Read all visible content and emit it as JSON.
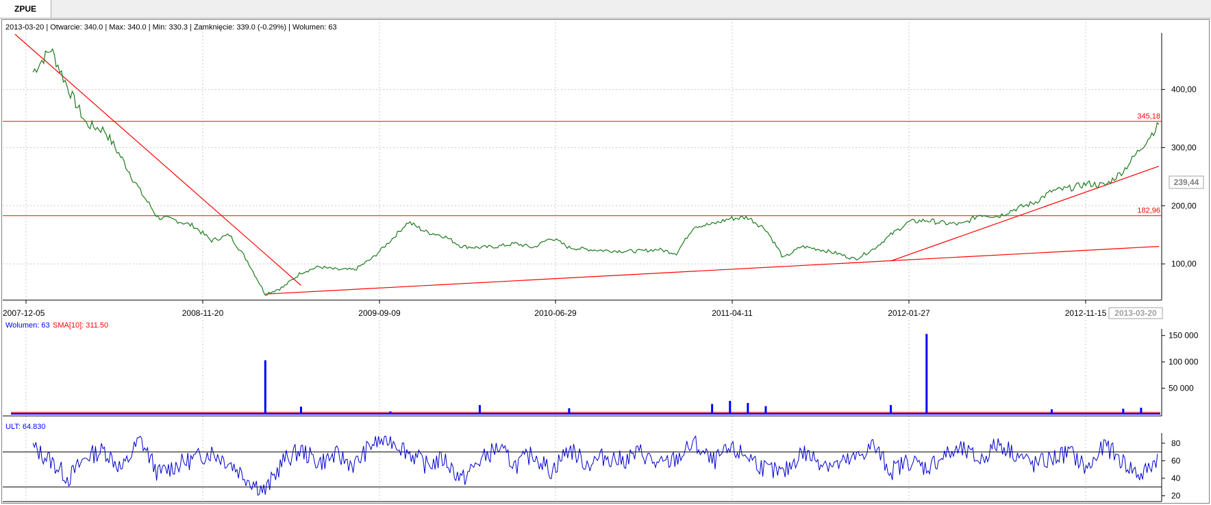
{
  "tab": {
    "label": "ZPUE"
  },
  "info_line": "2013-03-20 | Otwarcie: 340.0 | Max: 340.0 | Min: 330.3 | Zamknięcie: 339.0 (-0.29%)  | Wolumen: 63",
  "colors": {
    "price": "#000000",
    "price_ma": "#1a7a1a",
    "lines": "#ff0000",
    "volume": "#0000ff",
    "volume_sma": "#ff0000",
    "ult": "#0000cc",
    "grid": "#c8c8c8"
  },
  "chart_data": [
    {
      "type": "line",
      "name": "price",
      "x_ticks": [
        "2007-12-05",
        "2008-11-20",
        "2009-09-09",
        "2010-06-29",
        "2011-04-11",
        "2012-01-27",
        "2012-11-15"
      ],
      "x_current": "2013-03-20",
      "y_ticks": [
        "100,00",
        "200,00",
        "300,00",
        "400,00"
      ],
      "ylim": [
        40,
        495
      ],
      "last_value_label": "239,44",
      "x": [
        "2007-12",
        "2008-01",
        "2008-02",
        "2008-03",
        "2008-04",
        "2008-05",
        "2008-06",
        "2008-07",
        "2008-08",
        "2008-09",
        "2008-10",
        "2008-11",
        "2008-12",
        "2009-01",
        "2009-02",
        "2009-03",
        "2009-04",
        "2009-05",
        "2009-06",
        "2009-07",
        "2009-08",
        "2009-09",
        "2009-10",
        "2009-11",
        "2009-12",
        "2010-01",
        "2010-02",
        "2010-03",
        "2010-04",
        "2010-05",
        "2010-06",
        "2010-07",
        "2010-08",
        "2010-09",
        "2010-10",
        "2010-11",
        "2010-12",
        "2011-01",
        "2011-02",
        "2011-03",
        "2011-04",
        "2011-05",
        "2011-06",
        "2011-07",
        "2011-08",
        "2011-09",
        "2011-10",
        "2011-11",
        "2011-12",
        "2012-01",
        "2012-02",
        "2012-03",
        "2012-04",
        "2012-05",
        "2012-06",
        "2012-07",
        "2012-08",
        "2012-09",
        "2012-10",
        "2012-11",
        "2012-12",
        "2013-01",
        "2013-02",
        "2013-03"
      ],
      "values": [
        430,
        470,
        400,
        340,
        330,
        280,
        225,
        180,
        175,
        165,
        140,
        150,
        105,
        48,
        60,
        85,
        95,
        90,
        90,
        110,
        140,
        172,
        155,
        148,
        130,
        128,
        130,
        135,
        128,
        145,
        128,
        125,
        123,
        122,
        122,
        125,
        118,
        165,
        168,
        178,
        180,
        160,
        110,
        130,
        125,
        118,
        108,
        125,
        150,
        172,
        175,
        170,
        168,
        185,
        182,
        195,
        205,
        225,
        230,
        238,
        235,
        260,
        300,
        340
      ],
      "horizontal_lines": [
        {
          "value": 345.18,
          "label": "345,18"
        },
        {
          "value": 182.96,
          "label": "182,96"
        }
      ],
      "trend_lines": [
        {
          "from": [
            "2007-11",
            495
          ],
          "to": [
            "2009-03",
            63
          ]
        },
        {
          "from": [
            "2009-01",
            48
          ],
          "to": [
            "2013-03",
            130
          ]
        },
        {
          "from": [
            "2011-12",
            105
          ],
          "to": [
            "2013-03",
            268
          ]
        }
      ]
    },
    {
      "type": "bar",
      "name": "volume",
      "legend": [
        "Wolumen: 63",
        "SMA[10]: 311.50"
      ],
      "y_ticks": [
        "50 000",
        "100 000",
        "150 000"
      ],
      "ylim": [
        0,
        160000
      ],
      "baseline": 3000,
      "spikes": [
        {
          "x": "2009-01",
          "value": 103000
        },
        {
          "x": "2009-03",
          "value": 15000
        },
        {
          "x": "2009-08",
          "value": 6000
        },
        {
          "x": "2010-01",
          "value": 18000
        },
        {
          "x": "2010-06",
          "value": 12000
        },
        {
          "x": "2011-02",
          "value": 20000
        },
        {
          "x": "2011-03",
          "value": 26000
        },
        {
          "x": "2011-04",
          "value": 22000
        },
        {
          "x": "2011-05",
          "value": 16000
        },
        {
          "x": "2011-12",
          "value": 18000
        },
        {
          "x": "2012-02",
          "value": 153000
        },
        {
          "x": "2012-09",
          "value": 10000
        },
        {
          "x": "2013-01",
          "value": 11000
        },
        {
          "x": "2013-02",
          "value": 13000
        }
      ]
    },
    {
      "type": "line",
      "name": "ULT",
      "legend": "ULT: 64.830",
      "y_ticks": [
        "20",
        "40",
        "60",
        "80"
      ],
      "ylim": [
        15,
        90
      ],
      "reference_lines": [
        70,
        30
      ],
      "x": [
        "2007-12",
        "2008-01",
        "2008-02",
        "2008-03",
        "2008-04",
        "2008-05",
        "2008-06",
        "2008-07",
        "2008-08",
        "2008-09",
        "2008-10",
        "2008-11",
        "2008-12",
        "2009-01",
        "2009-02",
        "2009-03",
        "2009-04",
        "2009-05",
        "2009-06",
        "2009-07",
        "2009-08",
        "2009-09",
        "2009-10",
        "2009-11",
        "2009-12",
        "2010-01",
        "2010-02",
        "2010-03",
        "2010-04",
        "2010-05",
        "2010-06",
        "2010-07",
        "2010-08",
        "2010-09",
        "2010-10",
        "2010-11",
        "2010-12",
        "2011-01",
        "2011-02",
        "2011-03",
        "2011-04",
        "2011-05",
        "2011-06",
        "2011-07",
        "2011-08",
        "2011-09",
        "2011-10",
        "2011-11",
        "2011-12",
        "2012-01",
        "2012-02",
        "2012-03",
        "2012-04",
        "2012-05",
        "2012-06",
        "2012-07",
        "2012-08",
        "2012-09",
        "2012-10",
        "2012-11",
        "2012-12",
        "2013-01",
        "2013-02",
        "2013-03"
      ],
      "values": [
        75,
        60,
        40,
        65,
        72,
        50,
        85,
        45,
        55,
        62,
        70,
        58,
        40,
        25,
        60,
        72,
        58,
        66,
        55,
        80,
        85,
        70,
        55,
        62,
        38,
        60,
        75,
        55,
        68,
        48,
        74,
        56,
        65,
        60,
        70,
        54,
        62,
        80,
        58,
        72,
        66,
        50,
        45,
        70,
        60,
        55,
        62,
        78,
        48,
        60,
        52,
        66,
        72,
        60,
        80,
        68,
        55,
        62,
        70,
        50,
        78,
        58,
        42,
        65
      ]
    }
  ]
}
